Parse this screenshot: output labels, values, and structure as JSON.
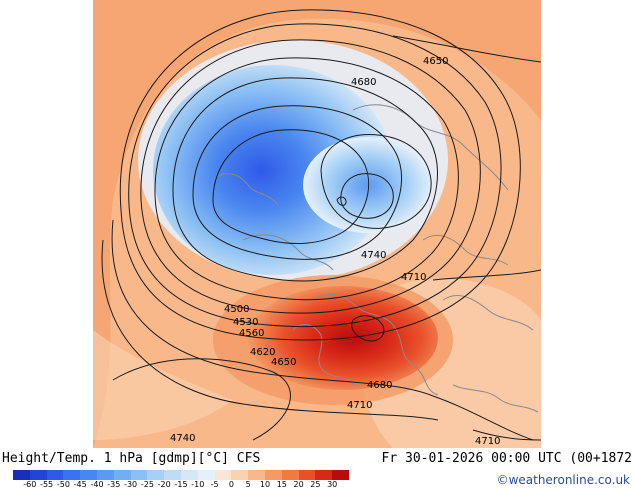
{
  "header": {
    "title": "Height/Temp. 1 hPa [gdmp][°C] CFS",
    "datetime": "Fr 30-01-2026 00:00 UTC (00+1872",
    "copyright": "©weatheronline.co.uk"
  },
  "legend": {
    "labels": [
      "-60",
      "-55",
      "-50",
      "-45",
      "-40",
      "-35",
      "-30",
      "-25",
      "-20",
      "-15",
      "-10",
      "-5",
      "0",
      "5",
      "10",
      "15",
      "20",
      "25",
      "30"
    ],
    "colors": [
      "#1a2fb8",
      "#2444d8",
      "#2f5ae8",
      "#3a72f0",
      "#4a86f0",
      "#5c9af0",
      "#74aef2",
      "#8cc0f4",
      "#a6d0f6",
      "#bedcf6",
      "#d6e8f8",
      "#e6f0fa",
      "#fae6d2",
      "#fad2b0",
      "#f8b88a",
      "#f49a64",
      "#f07a44",
      "#e8502a",
      "#d82818",
      "#b80c0c"
    ]
  },
  "map": {
    "contour_labels": [
      "4650",
      "4680",
      "4740",
      "4710",
      "4500",
      "4530",
      "4560",
      "4620",
      "4650",
      "4680",
      "4710",
      "4740",
      "4710"
    ]
  },
  "colors": {
    "background_warm": "#fad2b0",
    "cold_core": "#3a72f0",
    "warm_core": "#d82818"
  }
}
